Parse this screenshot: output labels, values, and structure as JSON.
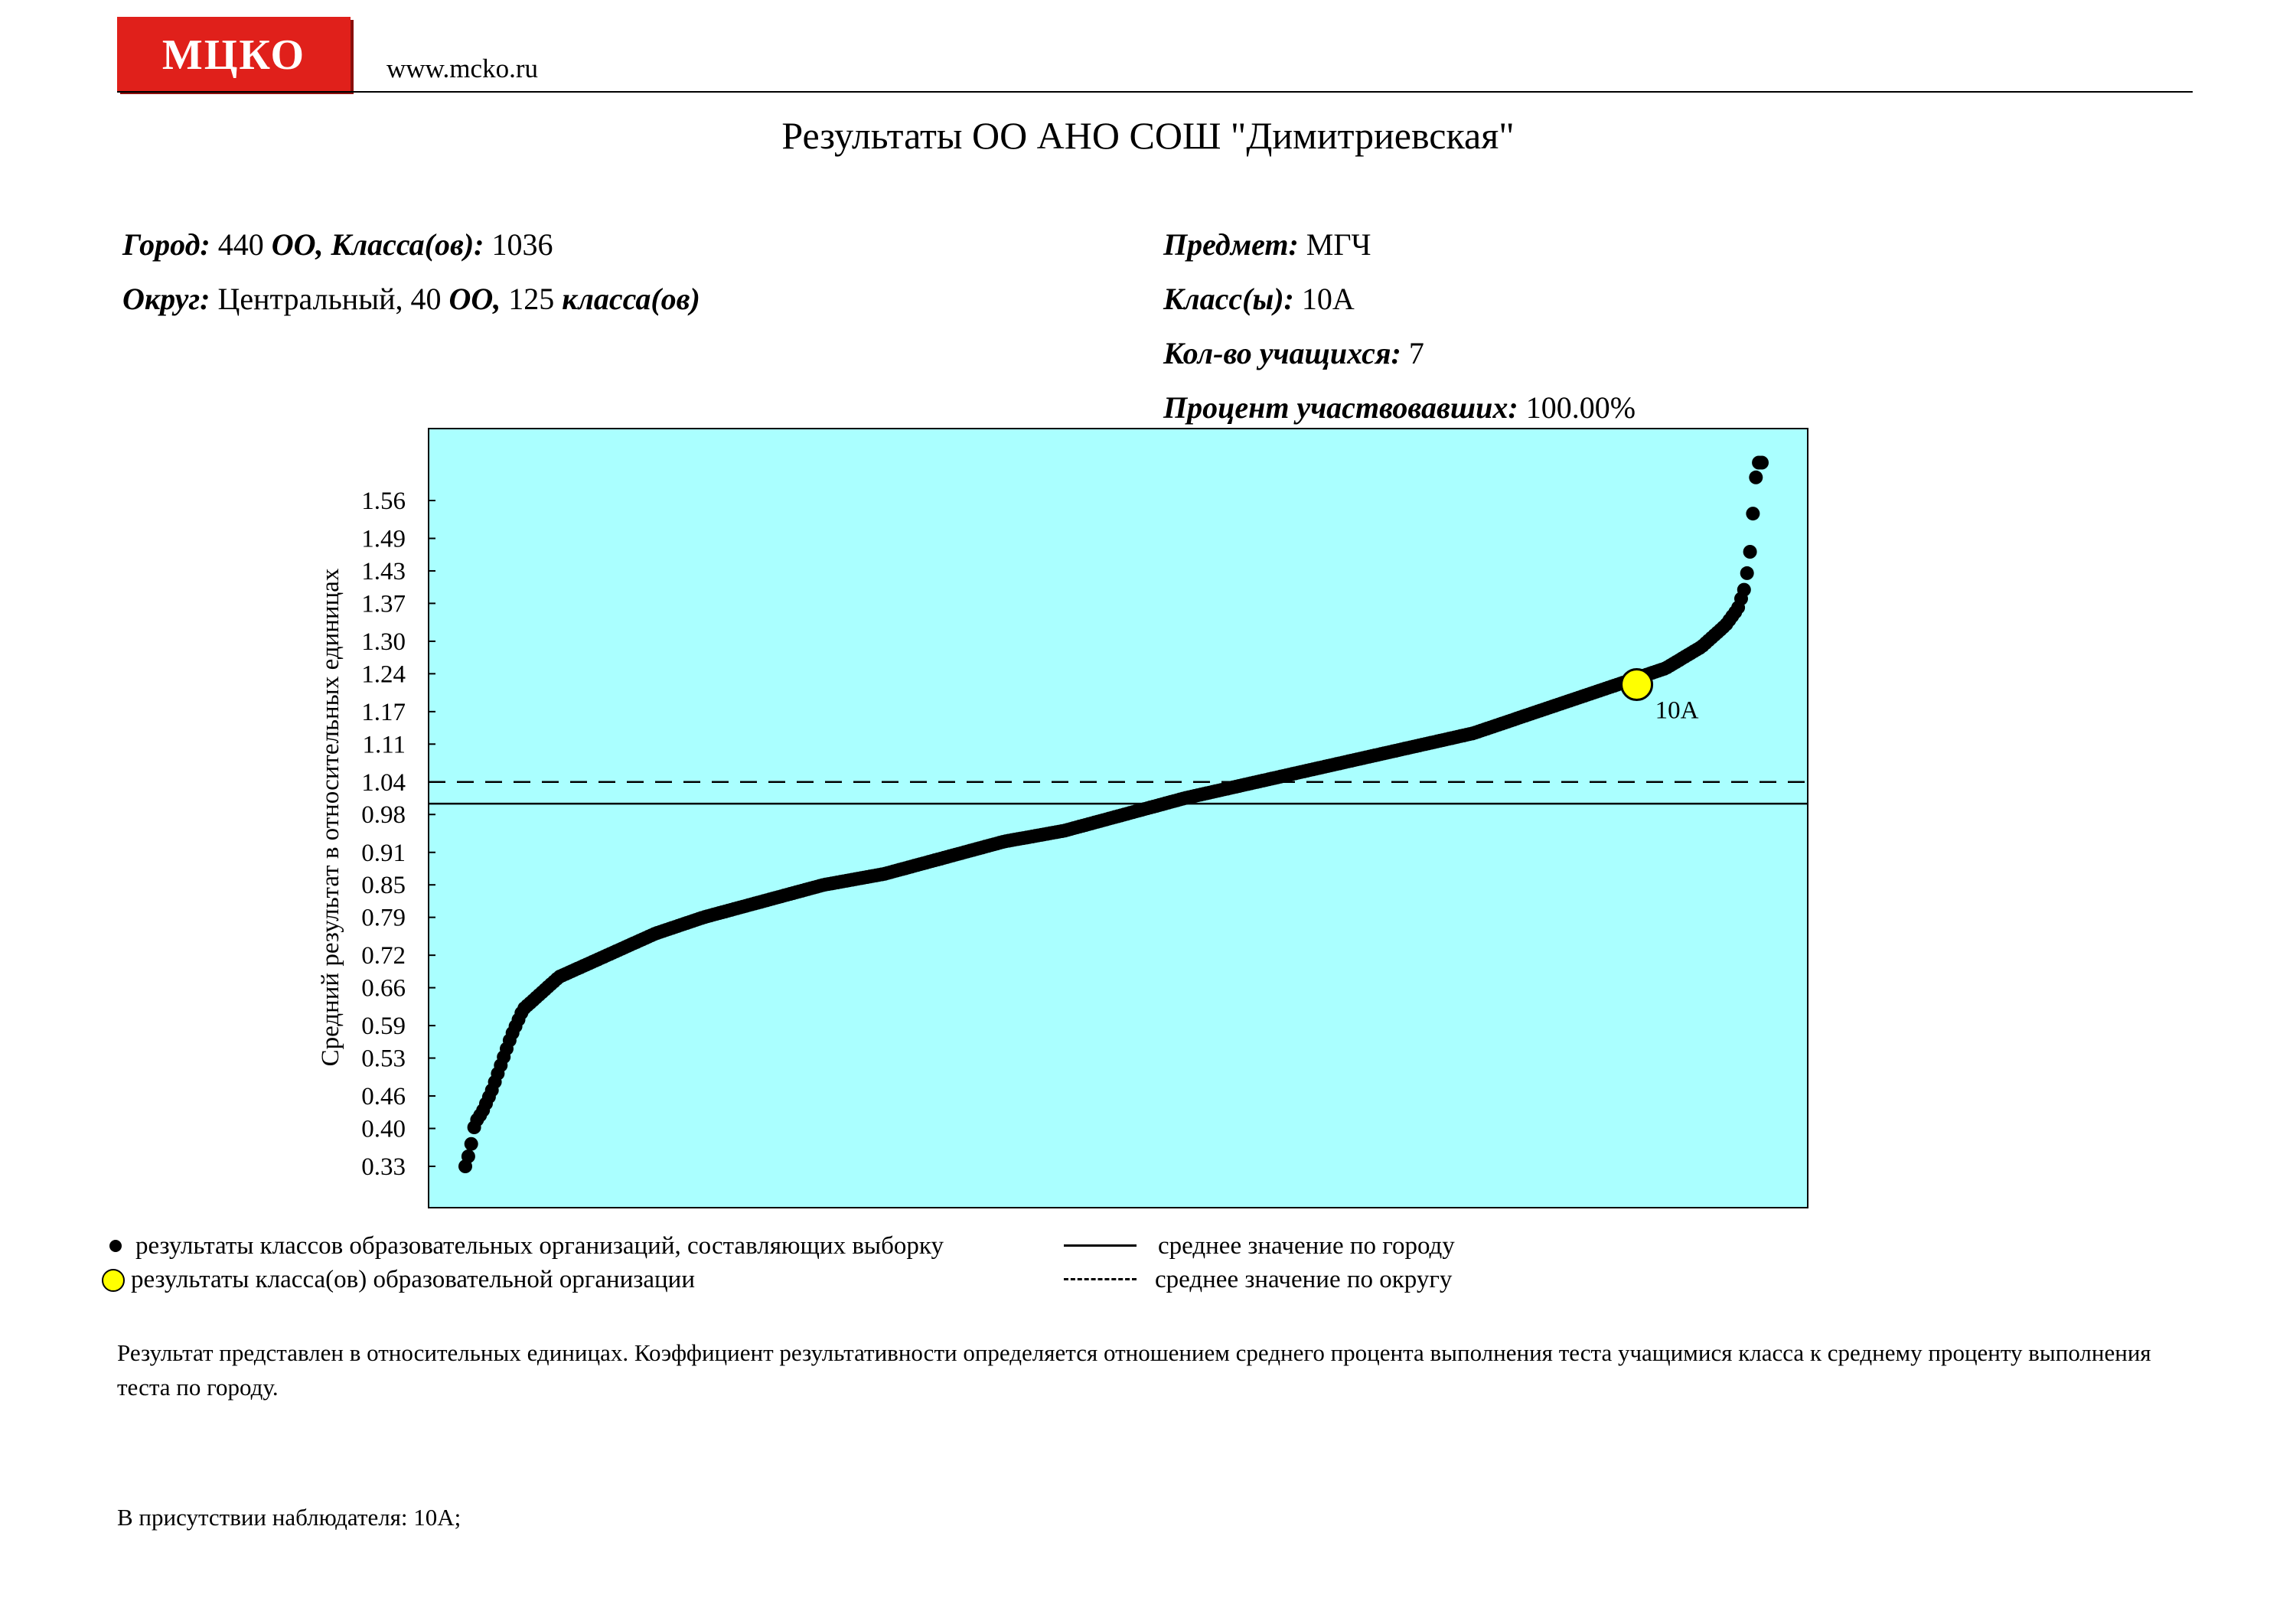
{
  "header": {
    "logo_text": "МЦКО",
    "site": "www.mcko.ru"
  },
  "title": "Результаты ОО АНО СОШ \"Димитриевская\"",
  "info": {
    "city_label": "Город:",
    "city_value": " 440 ",
    "oo_label": "ОО, Класса(ов):",
    "classes_value": " 1036",
    "district_label": "Округ:",
    "district_value": " Центральный, 40 ",
    "district_oo_label": "ОО,",
    "district_classes_value": " 125 ",
    "district_classes_label": "класса(ов)",
    "subject_label": "Предмет:",
    "subject_value": " МГЧ",
    "grade_label": "Класс(ы):",
    "grade_value": " 10А",
    "students_label": "Кол-во учащихся:",
    "students_value": " 7",
    "participation_label": "Процент участвовавших:",
    "participation_value": " 100.00%"
  },
  "chart_data": {
    "type": "scatter",
    "ylabel": "Средний результат в относительных единицах",
    "yticks": [
      "1.56",
      "1.49",
      "1.43",
      "1.37",
      "1.30",
      "1.24",
      "1.17",
      "1.11",
      "1.04",
      "0.98",
      "0.91",
      "0.85",
      "0.79",
      "0.72",
      "0.66",
      "0.59",
      "0.53",
      "0.46",
      "0.40",
      "0.33"
    ],
    "ylim": [
      0.26,
      1.65
    ],
    "count": 440,
    "curve_points": [
      [
        1,
        0.33
      ],
      [
        3,
        0.36
      ],
      [
        5,
        0.41
      ],
      [
        8,
        0.43
      ],
      [
        12,
        0.47
      ],
      [
        16,
        0.52
      ],
      [
        20,
        0.57
      ],
      [
        25,
        0.62
      ],
      [
        30,
        0.64
      ],
      [
        40,
        0.68
      ],
      [
        50,
        0.7
      ],
      [
        65,
        0.73
      ],
      [
        80,
        0.76
      ],
      [
        100,
        0.79
      ],
      [
        125,
        0.82
      ],
      [
        150,
        0.85
      ],
      [
        175,
        0.87
      ],
      [
        200,
        0.9
      ],
      [
        225,
        0.93
      ],
      [
        250,
        0.95
      ],
      [
        275,
        0.98
      ],
      [
        300,
        1.01
      ],
      [
        320,
        1.03
      ],
      [
        340,
        1.05
      ],
      [
        360,
        1.07
      ],
      [
        380,
        1.09
      ],
      [
        400,
        1.11
      ],
      [
        420,
        1.13
      ],
      [
        440,
        1.16
      ],
      [
        460,
        1.19
      ],
      [
        480,
        1.22
      ],
      [
        500,
        1.25
      ],
      [
        515,
        1.29
      ],
      [
        525,
        1.33
      ],
      [
        530,
        1.36
      ],
      [
        533,
        1.4
      ],
      [
        535,
        1.46
      ],
      [
        536,
        1.52
      ],
      [
        537,
        1.57
      ],
      [
        538,
        1.63
      ]
    ],
    "x_max": 540,
    "highlight": {
      "label": "10А",
      "x": 488,
      "y": 1.22
    },
    "city_mean": 1.0,
    "district_mean": 1.04
  },
  "legend": {
    "dots_label": "результаты классов образовательных организаций, составляющих выборку",
    "school_label": "результаты класса(ов) образовательной организации",
    "city_mean_label": "среднее значение по городу",
    "district_mean_label": "среднее значение по округу"
  },
  "notes": {
    "description": "Результат представлен в относительных единицах. Коэффициент результативности определяется отношением среднего процента выполнения теста учащимися класса к среднему проценту выполнения теста по городу.",
    "observer": "В присутствии наблюдателя: 10А;"
  },
  "colors": {
    "plot_bg": "#aaffff",
    "dots": "#000000",
    "highlight": "#ffff00",
    "logo": "#e0201b"
  }
}
